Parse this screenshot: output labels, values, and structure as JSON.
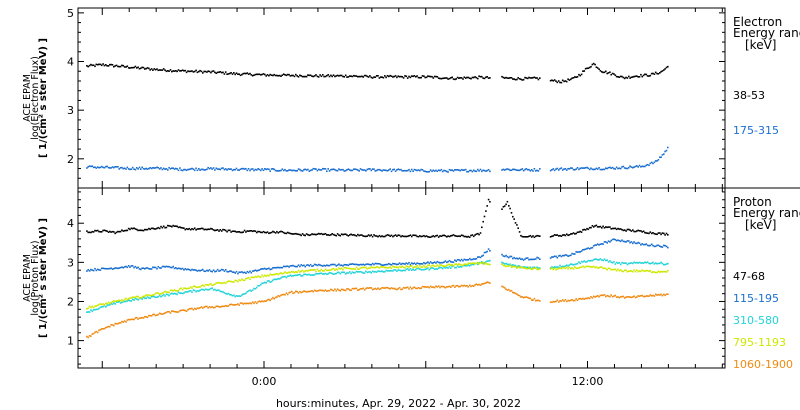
{
  "chart_data": [
    {
      "type": "scatter",
      "panel": "electron",
      "ylabel_lines": [
        "ACE EPAM",
        "log(Electron Flux)",
        "1/(cm² s ster MeV)"
      ],
      "ylim": [
        1.4,
        5.1
      ],
      "y_ticks": [
        2,
        3,
        4,
        5
      ],
      "x_range_hours": [
        -6.9,
        17.1
      ],
      "legend_title": [
        "Electron",
        "Energy range",
        "[keV]"
      ],
      "legend_placement": "right",
      "gap_hours": [
        [
          8.35,
          8.75
        ],
        [
          10.2,
          10.6
        ]
      ],
      "data_end_hour": 15.0,
      "series": [
        {
          "name": "38-53",
          "color": "#000000",
          "x": [
            -6.6,
            -6.0,
            -5.0,
            -4.0,
            -3.0,
            -2.0,
            -1.0,
            0.0,
            1.0,
            2.0,
            3.0,
            4.0,
            5.0,
            6.0,
            7.0,
            8.0,
            8.3,
            8.8,
            9.5,
            10.1,
            10.7,
            11.0,
            11.4,
            11.7,
            11.9,
            12.2,
            12.5,
            12.9,
            13.3,
            13.8,
            14.3,
            14.7,
            15.0
          ],
          "y": [
            3.92,
            3.95,
            3.9,
            3.85,
            3.82,
            3.8,
            3.76,
            3.74,
            3.73,
            3.72,
            3.72,
            3.7,
            3.7,
            3.7,
            3.67,
            3.69,
            3.68,
            3.68,
            3.66,
            3.67,
            3.62,
            3.6,
            3.65,
            3.75,
            3.85,
            3.97,
            3.82,
            3.76,
            3.68,
            3.72,
            3.74,
            3.8,
            3.93
          ]
        },
        {
          "name": "175-315",
          "color": "#1a6fd1",
          "x": [
            -6.6,
            -6.0,
            -5.0,
            -4.0,
            -3.0,
            -2.0,
            -1.0,
            0.0,
            1.0,
            2.0,
            3.0,
            4.0,
            5.0,
            6.0,
            7.0,
            8.0,
            8.3,
            8.8,
            9.5,
            10.1,
            10.7,
            11.3,
            12.0,
            12.7,
            13.4,
            14.0,
            14.5,
            14.8,
            15.0
          ],
          "y": [
            1.85,
            1.84,
            1.82,
            1.82,
            1.8,
            1.81,
            1.8,
            1.79,
            1.78,
            1.79,
            1.78,
            1.79,
            1.78,
            1.77,
            1.77,
            1.78,
            1.78,
            1.8,
            1.79,
            1.79,
            1.8,
            1.81,
            1.82,
            1.82,
            1.84,
            1.86,
            1.95,
            2.12,
            2.28
          ]
        }
      ]
    },
    {
      "type": "scatter",
      "panel": "proton",
      "ylabel_lines": [
        "ACE EPAM",
        "log(Proton Flux)",
        "1/(cm² s ster MeV)"
      ],
      "ylim": [
        0.3,
        4.9
      ],
      "y_ticks": [
        1,
        2,
        3,
        4
      ],
      "x_range_hours": [
        -6.9,
        17.1
      ],
      "x_tick_labels": [
        "0:00",
        "12:00"
      ],
      "x_tick_hours": [
        0,
        12
      ],
      "xlabel": "hours:minutes, Apr. 29, 2022 - Apr. 30, 2022",
      "legend_title": [
        "Proton",
        "Energy range",
        "[keV]"
      ],
      "legend_placement": "right",
      "gap_hours": [
        [
          8.35,
          8.75
        ],
        [
          10.2,
          10.6
        ]
      ],
      "data_end_hour": 15.0,
      "series": [
        {
          "name": "47-68",
          "color": "#000000",
          "x": [
            -6.6,
            -6.0,
            -5.5,
            -5.0,
            -4.5,
            -4.0,
            -3.5,
            -3.0,
            -2.5,
            -2.0,
            -1.5,
            -1.0,
            -0.5,
            0.0,
            0.5,
            1.0,
            1.5,
            2.0,
            3.0,
            4.0,
            5.0,
            6.0,
            7.0,
            7.6,
            8.0,
            8.2,
            8.3,
            8.8,
            9.0,
            9.5,
            10.1,
            10.7,
            11.2,
            11.7,
            12.2,
            12.8,
            13.3,
            13.8,
            14.3,
            14.7,
            15.0
          ],
          "y": [
            3.8,
            3.82,
            3.78,
            3.88,
            3.85,
            3.9,
            3.95,
            3.88,
            3.87,
            3.86,
            3.83,
            3.8,
            3.82,
            3.78,
            3.8,
            3.75,
            3.72,
            3.74,
            3.72,
            3.7,
            3.7,
            3.68,
            3.7,
            3.68,
            3.75,
            4.35,
            4.6,
            4.4,
            4.55,
            3.7,
            3.68,
            3.7,
            3.72,
            3.8,
            3.95,
            3.9,
            3.85,
            3.82,
            3.78,
            3.75,
            3.74
          ]
        },
        {
          "name": "115-195",
          "color": "#1a6fd1",
          "x": [
            -6.6,
            -6.0,
            -5.5,
            -5.0,
            -4.5,
            -4.0,
            -3.5,
            -3.0,
            -2.5,
            -2.0,
            -1.5,
            -1.0,
            -0.5,
            0.0,
            0.5,
            1.0,
            2.0,
            3.0,
            4.0,
            5.0,
            6.0,
            7.0,
            7.6,
            8.0,
            8.3,
            8.8,
            9.5,
            10.1,
            10.7,
            11.3,
            11.9,
            12.5,
            13.0,
            13.5,
            14.0,
            14.5,
            15.0
          ],
          "y": [
            2.82,
            2.85,
            2.88,
            2.92,
            2.85,
            2.88,
            2.9,
            2.85,
            2.82,
            2.8,
            2.82,
            2.75,
            2.78,
            2.85,
            2.88,
            2.92,
            2.95,
            2.95,
            2.97,
            2.98,
            3.0,
            3.05,
            3.1,
            3.15,
            3.35,
            3.2,
            3.1,
            3.12,
            3.15,
            3.2,
            3.35,
            3.5,
            3.6,
            3.55,
            3.48,
            3.45,
            3.42
          ]
        },
        {
          "name": "310-580",
          "color": "#22d3d8",
          "x": [
            -6.6,
            -6.0,
            -5.5,
            -5.0,
            -4.5,
            -4.0,
            -3.5,
            -3.0,
            -2.5,
            -2.0,
            -1.5,
            -1.0,
            -0.5,
            0.0,
            0.5,
            1.0,
            2.0,
            3.0,
            4.0,
            5.0,
            6.0,
            7.0,
            7.6,
            8.0,
            8.3,
            8.8,
            9.5,
            10.1,
            10.7,
            11.3,
            11.9,
            12.5,
            13.0,
            13.5,
            14.0,
            14.5,
            15.0
          ],
          "y": [
            1.75,
            1.88,
            1.98,
            2.05,
            2.1,
            2.15,
            2.2,
            2.25,
            2.3,
            2.35,
            2.25,
            2.15,
            2.3,
            2.5,
            2.6,
            2.68,
            2.72,
            2.75,
            2.78,
            2.82,
            2.85,
            2.9,
            2.95,
            3.0,
            3.05,
            3.0,
            2.9,
            2.88,
            2.9,
            2.95,
            3.05,
            3.1,
            3.0,
            2.98,
            3.02,
            3.0,
            2.98
          ]
        },
        {
          "name": "795-1193",
          "color": "#cde800",
          "x": [
            -6.6,
            -6.0,
            -5.5,
            -5.0,
            -4.5,
            -4.0,
            -3.5,
            -3.0,
            -2.5,
            -2.0,
            -1.5,
            -1.0,
            -0.5,
            0.0,
            0.5,
            1.0,
            2.0,
            3.0,
            4.0,
            5.0,
            6.0,
            7.0,
            7.6,
            8.0,
            8.3,
            8.8,
            9.5,
            10.1,
            10.7,
            11.3,
            11.9,
            12.5,
            13.0,
            13.5,
            14.0,
            14.5,
            15.0
          ],
          "y": [
            1.85,
            1.95,
            2.02,
            2.1,
            2.15,
            2.22,
            2.28,
            2.35,
            2.4,
            2.45,
            2.5,
            2.55,
            2.62,
            2.68,
            2.72,
            2.78,
            2.82,
            2.86,
            2.88,
            2.9,
            2.92,
            2.95,
            2.98,
            3.0,
            2.98,
            2.95,
            2.88,
            2.85,
            2.85,
            2.87,
            2.9,
            2.88,
            2.82,
            2.8,
            2.8,
            2.78,
            2.8
          ]
        },
        {
          "name": "1060-1900",
          "color": "#f08a12",
          "x": [
            -6.6,
            -6.2,
            -5.8,
            -5.5,
            -5.0,
            -4.5,
            -4.0,
            -3.5,
            -3.0,
            -2.5,
            -2.0,
            -1.5,
            -1.0,
            -0.5,
            0.0,
            0.5,
            1.0,
            2.0,
            3.0,
            4.0,
            5.0,
            6.0,
            7.0,
            7.6,
            8.0,
            8.3,
            8.8,
            9.5,
            10.1,
            10.7,
            11.3,
            11.9,
            12.5,
            13.0,
            13.5,
            14.0,
            14.5,
            15.0
          ],
          "y": [
            1.1,
            1.25,
            1.38,
            1.45,
            1.55,
            1.62,
            1.68,
            1.75,
            1.78,
            1.85,
            1.88,
            1.9,
            1.95,
            1.98,
            2.02,
            2.15,
            2.25,
            2.3,
            2.32,
            2.35,
            2.35,
            2.38,
            2.4,
            2.42,
            2.45,
            2.5,
            2.4,
            2.15,
            2.05,
            2.02,
            2.05,
            2.1,
            2.18,
            2.15,
            2.12,
            2.15,
            2.18,
            2.2
          ]
        }
      ]
    }
  ]
}
